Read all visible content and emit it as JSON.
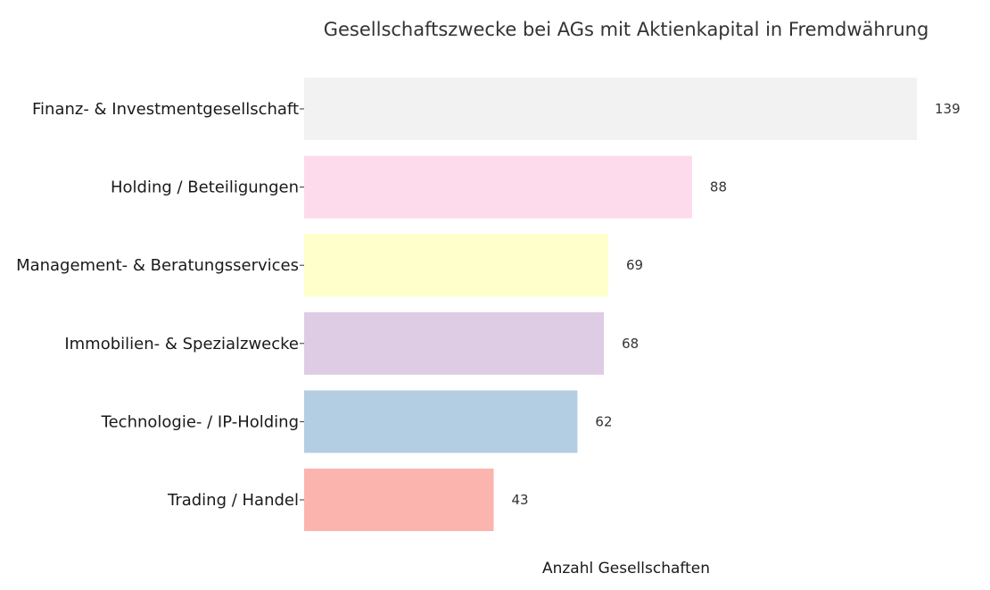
{
  "chart_data": {
    "type": "bar",
    "orientation": "horizontal",
    "title": "Gesellschaftszwecke bei AGs mit Aktienkapital in Fremdwährung",
    "xlabel": "Anzahl Gesellschaften",
    "ylabel": "",
    "categories": [
      "Finanz- & Investmentgesellschaft",
      "Holding / Beteiligungen",
      "Management- & Beratungsservices",
      "Immobilien- & Spezialzwecke",
      "Technologie- / IP-Holding",
      "Trading / Handel"
    ],
    "values": [
      139,
      88,
      69,
      68,
      62,
      43
    ],
    "colors": [
      "#f2f2f2",
      "#fddaec",
      "#ffffcc",
      "#decbe4",
      "#b3cde3",
      "#fbb4ae"
    ],
    "xlim": [
      0,
      139
    ],
    "grid": false,
    "legend": "none",
    "data_labels": true
  }
}
